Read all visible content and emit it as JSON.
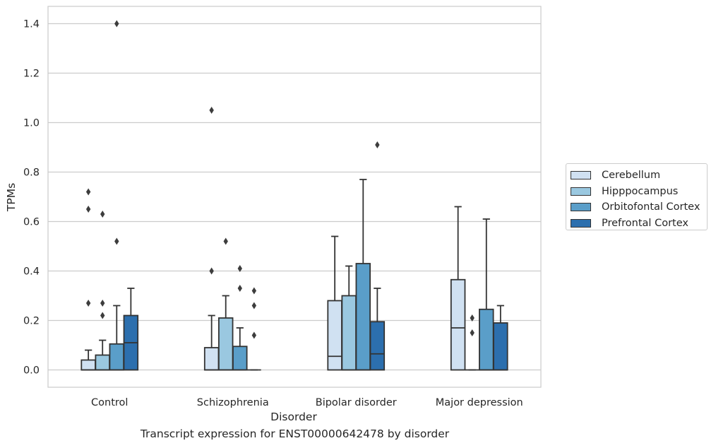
{
  "chart_data": {
    "type": "box",
    "xlabel": "Disorder",
    "ylabel": "TPMs",
    "caption": "Transcript expression for ENST00000642478 by disorder",
    "ylim": [
      -0.07,
      1.47
    ],
    "yticks": [
      "0.0",
      "0.2",
      "0.4",
      "0.6",
      "0.8",
      "1.0",
      "1.2",
      "1.4"
    ],
    "ytick_values": [
      0,
      0.2,
      0.4,
      0.6,
      0.8,
      1.0,
      1.2,
      1.4
    ],
    "grid": "horizontal",
    "legend_position": "right",
    "categories": [
      "Control",
      "Schizophrenia",
      "Bipolar disorder",
      "Major depression"
    ],
    "series": [
      {
        "name": "Cerebellum",
        "color": "#d0e1f2",
        "boxes": [
          {
            "whislo": 0,
            "q1": 0,
            "med": 0,
            "q3": 0.04,
            "whishi": 0.08,
            "fliers": [
              0.27,
              0.65,
              0.72
            ]
          },
          {
            "whislo": 0,
            "q1": 0,
            "med": 0,
            "q3": 0.09,
            "whishi": 0.22,
            "fliers": [
              0.4,
              1.05
            ]
          },
          {
            "whislo": 0,
            "q1": 0,
            "med": 0.055,
            "q3": 0.28,
            "whishi": 0.54,
            "fliers": []
          },
          {
            "whislo": 0,
            "q1": 0,
            "med": 0.17,
            "q3": 0.365,
            "whishi": 0.66,
            "fliers": []
          }
        ]
      },
      {
        "name": "Hipppocampus",
        "color": "#9ac8e0",
        "boxes": [
          {
            "whislo": 0,
            "q1": 0,
            "med": 0,
            "q3": 0.06,
            "whishi": 0.12,
            "fliers": [
              0.22,
              0.27,
              0.63
            ]
          },
          {
            "whislo": 0,
            "q1": 0,
            "med": 0,
            "q3": 0.21,
            "whishi": 0.3,
            "fliers": [
              0.52
            ]
          },
          {
            "whislo": 0,
            "q1": 0,
            "med": 0,
            "q3": 0.3,
            "whishi": 0.42,
            "fliers": []
          },
          {
            "whislo": 0,
            "q1": 0,
            "med": 0,
            "q3": 0,
            "whishi": 0,
            "fliers": [
              0.15,
              0.21
            ]
          }
        ]
      },
      {
        "name": "Orbitofontal Cortex",
        "color": "#5a9ec9",
        "boxes": [
          {
            "whislo": 0,
            "q1": 0,
            "med": 0,
            "q3": 0.105,
            "whishi": 0.26,
            "fliers": [
              0.52,
              1.4
            ]
          },
          {
            "whislo": 0,
            "q1": 0,
            "med": 0,
            "q3": 0.095,
            "whishi": 0.17,
            "fliers": [
              0.33,
              0.41
            ]
          },
          {
            "whislo": 0,
            "q1": 0,
            "med": 0,
            "q3": 0.43,
            "whishi": 0.77,
            "fliers": []
          },
          {
            "whislo": 0,
            "q1": 0,
            "med": 0,
            "q3": 0.245,
            "whishi": 0.61,
            "fliers": []
          }
        ]
      },
      {
        "name": "Prefrontal Cortex",
        "color": "#2c6fae",
        "boxes": [
          {
            "whislo": 0,
            "q1": 0,
            "med": 0.11,
            "q3": 0.22,
            "whishi": 0.33,
            "fliers": []
          },
          {
            "whislo": 0,
            "q1": 0,
            "med": 0,
            "q3": 0,
            "whishi": 0,
            "fliers": [
              0.14,
              0.26,
              0.32
            ]
          },
          {
            "whislo": 0,
            "q1": 0,
            "med": 0.065,
            "q3": 0.195,
            "whishi": 0.33,
            "fliers": [
              0.91
            ]
          },
          {
            "whislo": 0,
            "q1": 0,
            "med": 0,
            "q3": 0.19,
            "whishi": 0.26,
            "fliers": []
          }
        ]
      }
    ]
  }
}
